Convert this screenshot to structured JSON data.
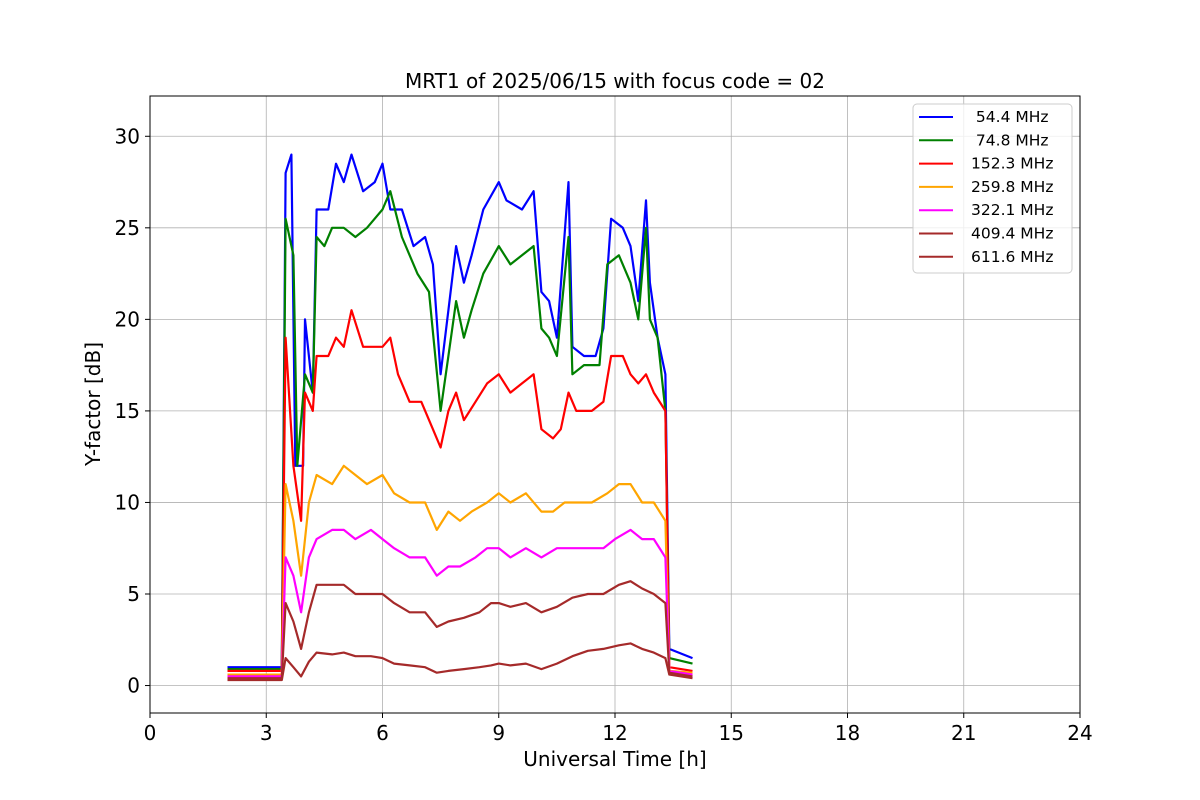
{
  "chart_data": {
    "type": "line",
    "title": "MRT1 of 2025/06/15 with focus code = 02",
    "xlabel": "Universal Time [h]",
    "ylabel": "Y-factor [dB]",
    "xlim": [
      0,
      24
    ],
    "ylim": [
      -1.5,
      32.2
    ],
    "xticks": [
      0,
      3,
      6,
      9,
      12,
      15,
      18,
      21,
      24
    ],
    "yticks": [
      0,
      5,
      10,
      15,
      20,
      25,
      30
    ],
    "grid": true,
    "legend_position": "top-right",
    "series": [
      {
        "name": " 54.4 MHz",
        "color": "#0000ff",
        "points": [
          [
            2.0,
            1.0
          ],
          [
            3.4,
            1.0
          ],
          [
            3.5,
            28.0
          ],
          [
            3.65,
            29.0
          ],
          [
            3.75,
            12.0
          ],
          [
            3.95,
            12.0
          ],
          [
            4.0,
            20.0
          ],
          [
            4.2,
            16.0
          ],
          [
            4.3,
            26.0
          ],
          [
            4.6,
            26.0
          ],
          [
            4.8,
            28.5
          ],
          [
            5.0,
            27.5
          ],
          [
            5.2,
            29.0
          ],
          [
            5.5,
            27.0
          ],
          [
            5.8,
            27.5
          ],
          [
            6.0,
            28.5
          ],
          [
            6.2,
            26.0
          ],
          [
            6.5,
            26.0
          ],
          [
            6.8,
            24.0
          ],
          [
            7.1,
            24.5
          ],
          [
            7.3,
            23.0
          ],
          [
            7.5,
            17.0
          ],
          [
            7.7,
            20.5
          ],
          [
            7.9,
            24.0
          ],
          [
            8.1,
            22.0
          ],
          [
            8.3,
            23.5
          ],
          [
            8.6,
            26.0
          ],
          [
            9.0,
            27.5
          ],
          [
            9.2,
            26.5
          ],
          [
            9.6,
            26.0
          ],
          [
            9.9,
            27.0
          ],
          [
            10.1,
            21.5
          ],
          [
            10.3,
            21.0
          ],
          [
            10.5,
            19.0
          ],
          [
            10.8,
            27.5
          ],
          [
            10.9,
            18.5
          ],
          [
            11.2,
            18.0
          ],
          [
            11.5,
            18.0
          ],
          [
            11.7,
            19.5
          ],
          [
            11.9,
            25.5
          ],
          [
            12.2,
            25.0
          ],
          [
            12.4,
            24.0
          ],
          [
            12.6,
            21.0
          ],
          [
            12.8,
            26.5
          ],
          [
            12.9,
            22.0
          ],
          [
            13.1,
            19.0
          ],
          [
            13.3,
            17.0
          ],
          [
            13.4,
            2.0
          ],
          [
            14.0,
            1.5
          ]
        ]
      },
      {
        "name": " 74.8 MHz",
        "color": "#008000",
        "points": [
          [
            2.0,
            0.9
          ],
          [
            3.4,
            0.9
          ],
          [
            3.5,
            25.5
          ],
          [
            3.7,
            23.5
          ],
          [
            3.8,
            12.0
          ],
          [
            4.0,
            17.0
          ],
          [
            4.2,
            16.0
          ],
          [
            4.3,
            24.5
          ],
          [
            4.5,
            24.0
          ],
          [
            4.7,
            25.0
          ],
          [
            5.0,
            25.0
          ],
          [
            5.3,
            24.5
          ],
          [
            5.6,
            25.0
          ],
          [
            6.0,
            26.0
          ],
          [
            6.2,
            27.0
          ],
          [
            6.5,
            24.5
          ],
          [
            6.9,
            22.5
          ],
          [
            7.2,
            21.5
          ],
          [
            7.5,
            15.0
          ],
          [
            7.7,
            18.0
          ],
          [
            7.9,
            21.0
          ],
          [
            8.1,
            19.0
          ],
          [
            8.3,
            20.5
          ],
          [
            8.6,
            22.5
          ],
          [
            9.0,
            24.0
          ],
          [
            9.3,
            23.0
          ],
          [
            9.6,
            23.5
          ],
          [
            9.9,
            24.0
          ],
          [
            10.1,
            19.5
          ],
          [
            10.3,
            19.0
          ],
          [
            10.5,
            18.0
          ],
          [
            10.8,
            24.5
          ],
          [
            10.9,
            17.0
          ],
          [
            11.2,
            17.5
          ],
          [
            11.6,
            17.5
          ],
          [
            11.8,
            23.0
          ],
          [
            12.1,
            23.5
          ],
          [
            12.4,
            22.0
          ],
          [
            12.6,
            20.0
          ],
          [
            12.8,
            25.0
          ],
          [
            12.9,
            20.0
          ],
          [
            13.1,
            19.0
          ],
          [
            13.3,
            15.0
          ],
          [
            13.4,
            1.5
          ],
          [
            14.0,
            1.2
          ]
        ]
      },
      {
        "name": "152.3 MHz",
        "color": "#ff0000",
        "points": [
          [
            2.0,
            0.8
          ],
          [
            3.4,
            0.8
          ],
          [
            3.5,
            19.0
          ],
          [
            3.7,
            12.0
          ],
          [
            3.9,
            9.0
          ],
          [
            4.0,
            16.0
          ],
          [
            4.2,
            15.0
          ],
          [
            4.3,
            18.0
          ],
          [
            4.6,
            18.0
          ],
          [
            4.8,
            19.0
          ],
          [
            5.0,
            18.5
          ],
          [
            5.2,
            20.5
          ],
          [
            5.5,
            18.5
          ],
          [
            6.0,
            18.5
          ],
          [
            6.2,
            19.0
          ],
          [
            6.4,
            17.0
          ],
          [
            6.7,
            15.5
          ],
          [
            7.0,
            15.5
          ],
          [
            7.3,
            14.0
          ],
          [
            7.5,
            13.0
          ],
          [
            7.7,
            15.0
          ],
          [
            7.9,
            16.0
          ],
          [
            8.1,
            14.5
          ],
          [
            8.4,
            15.5
          ],
          [
            8.7,
            16.5
          ],
          [
            9.0,
            17.0
          ],
          [
            9.3,
            16.0
          ],
          [
            9.6,
            16.5
          ],
          [
            9.9,
            17.0
          ],
          [
            10.1,
            14.0
          ],
          [
            10.4,
            13.5
          ],
          [
            10.6,
            14.0
          ],
          [
            10.8,
            16.0
          ],
          [
            11.0,
            15.0
          ],
          [
            11.4,
            15.0
          ],
          [
            11.7,
            15.5
          ],
          [
            11.9,
            18.0
          ],
          [
            12.2,
            18.0
          ],
          [
            12.4,
            17.0
          ],
          [
            12.6,
            16.5
          ],
          [
            12.8,
            17.0
          ],
          [
            13.0,
            16.0
          ],
          [
            13.3,
            15.0
          ],
          [
            13.4,
            1.0
          ],
          [
            14.0,
            0.8
          ]
        ]
      },
      {
        "name": "259.8 MHz",
        "color": "#ffa500",
        "points": [
          [
            2.0,
            0.6
          ],
          [
            3.4,
            0.6
          ],
          [
            3.5,
            11.0
          ],
          [
            3.7,
            9.0
          ],
          [
            3.9,
            6.0
          ],
          [
            4.1,
            10.0
          ],
          [
            4.3,
            11.5
          ],
          [
            4.7,
            11.0
          ],
          [
            5.0,
            12.0
          ],
          [
            5.3,
            11.5
          ],
          [
            5.6,
            11.0
          ],
          [
            6.0,
            11.5
          ],
          [
            6.3,
            10.5
          ],
          [
            6.7,
            10.0
          ],
          [
            7.1,
            10.0
          ],
          [
            7.4,
            8.5
          ],
          [
            7.7,
            9.5
          ],
          [
            8.0,
            9.0
          ],
          [
            8.3,
            9.5
          ],
          [
            8.7,
            10.0
          ],
          [
            9.0,
            10.5
          ],
          [
            9.3,
            10.0
          ],
          [
            9.7,
            10.5
          ],
          [
            10.1,
            9.5
          ],
          [
            10.4,
            9.5
          ],
          [
            10.7,
            10.0
          ],
          [
            11.0,
            10.0
          ],
          [
            11.4,
            10.0
          ],
          [
            11.8,
            10.5
          ],
          [
            12.1,
            11.0
          ],
          [
            12.4,
            11.0
          ],
          [
            12.7,
            10.0
          ],
          [
            13.0,
            10.0
          ],
          [
            13.3,
            9.0
          ],
          [
            13.4,
            0.8
          ],
          [
            14.0,
            0.7
          ]
        ]
      },
      {
        "name": "322.1 MHz",
        "color": "#ff00ff",
        "points": [
          [
            2.0,
            0.5
          ],
          [
            3.4,
            0.5
          ],
          [
            3.5,
            7.0
          ],
          [
            3.7,
            6.0
          ],
          [
            3.9,
            4.0
          ],
          [
            4.1,
            7.0
          ],
          [
            4.3,
            8.0
          ],
          [
            4.7,
            8.5
          ],
          [
            5.0,
            8.5
          ],
          [
            5.3,
            8.0
          ],
          [
            5.7,
            8.5
          ],
          [
            6.0,
            8.0
          ],
          [
            6.3,
            7.5
          ],
          [
            6.7,
            7.0
          ],
          [
            7.1,
            7.0
          ],
          [
            7.4,
            6.0
          ],
          [
            7.7,
            6.5
          ],
          [
            8.0,
            6.5
          ],
          [
            8.4,
            7.0
          ],
          [
            8.7,
            7.5
          ],
          [
            9.0,
            7.5
          ],
          [
            9.3,
            7.0
          ],
          [
            9.7,
            7.5
          ],
          [
            10.1,
            7.0
          ],
          [
            10.5,
            7.5
          ],
          [
            10.9,
            7.5
          ],
          [
            11.3,
            7.5
          ],
          [
            11.7,
            7.5
          ],
          [
            12.0,
            8.0
          ],
          [
            12.4,
            8.5
          ],
          [
            12.7,
            8.0
          ],
          [
            13.0,
            8.0
          ],
          [
            13.3,
            7.0
          ],
          [
            13.4,
            0.8
          ],
          [
            14.0,
            0.6
          ]
        ]
      },
      {
        "name": "409.4 MHz",
        "color": "#a52a2a",
        "points": [
          [
            2.0,
            0.4
          ],
          [
            3.4,
            0.4
          ],
          [
            3.5,
            4.5
          ],
          [
            3.7,
            3.5
          ],
          [
            3.9,
            2.0
          ],
          [
            4.1,
            4.0
          ],
          [
            4.3,
            5.5
          ],
          [
            4.7,
            5.5
          ],
          [
            5.0,
            5.5
          ],
          [
            5.3,
            5.0
          ],
          [
            5.7,
            5.0
          ],
          [
            6.0,
            5.0
          ],
          [
            6.3,
            4.5
          ],
          [
            6.7,
            4.0
          ],
          [
            7.1,
            4.0
          ],
          [
            7.4,
            3.2
          ],
          [
            7.7,
            3.5
          ],
          [
            8.1,
            3.7
          ],
          [
            8.5,
            4.0
          ],
          [
            8.8,
            4.5
          ],
          [
            9.0,
            4.5
          ],
          [
            9.3,
            4.3
          ],
          [
            9.7,
            4.5
          ],
          [
            10.1,
            4.0
          ],
          [
            10.5,
            4.3
          ],
          [
            10.9,
            4.8
          ],
          [
            11.3,
            5.0
          ],
          [
            11.7,
            5.0
          ],
          [
            12.1,
            5.5
          ],
          [
            12.4,
            5.7
          ],
          [
            12.7,
            5.3
          ],
          [
            13.0,
            5.0
          ],
          [
            13.3,
            4.5
          ],
          [
            13.4,
            0.7
          ],
          [
            14.0,
            0.5
          ]
        ]
      },
      {
        "name": "611.6 MHz",
        "color": "#a52a2a",
        "points": [
          [
            2.0,
            0.3
          ],
          [
            3.4,
            0.3
          ],
          [
            3.5,
            1.5
          ],
          [
            3.7,
            1.0
          ],
          [
            3.9,
            0.5
          ],
          [
            4.1,
            1.3
          ],
          [
            4.3,
            1.8
          ],
          [
            4.7,
            1.7
          ],
          [
            5.0,
            1.8
          ],
          [
            5.3,
            1.6
          ],
          [
            5.7,
            1.6
          ],
          [
            6.0,
            1.5
          ],
          [
            6.3,
            1.2
          ],
          [
            6.7,
            1.1
          ],
          [
            7.1,
            1.0
          ],
          [
            7.4,
            0.7
          ],
          [
            7.7,
            0.8
          ],
          [
            8.1,
            0.9
          ],
          [
            8.5,
            1.0
          ],
          [
            8.8,
            1.1
          ],
          [
            9.0,
            1.2
          ],
          [
            9.3,
            1.1
          ],
          [
            9.7,
            1.2
          ],
          [
            10.1,
            0.9
          ],
          [
            10.5,
            1.2
          ],
          [
            10.9,
            1.6
          ],
          [
            11.3,
            1.9
          ],
          [
            11.7,
            2.0
          ],
          [
            12.1,
            2.2
          ],
          [
            12.4,
            2.3
          ],
          [
            12.7,
            2.0
          ],
          [
            13.0,
            1.8
          ],
          [
            13.3,
            1.5
          ],
          [
            13.4,
            0.6
          ],
          [
            14.0,
            0.4
          ]
        ]
      }
    ]
  }
}
